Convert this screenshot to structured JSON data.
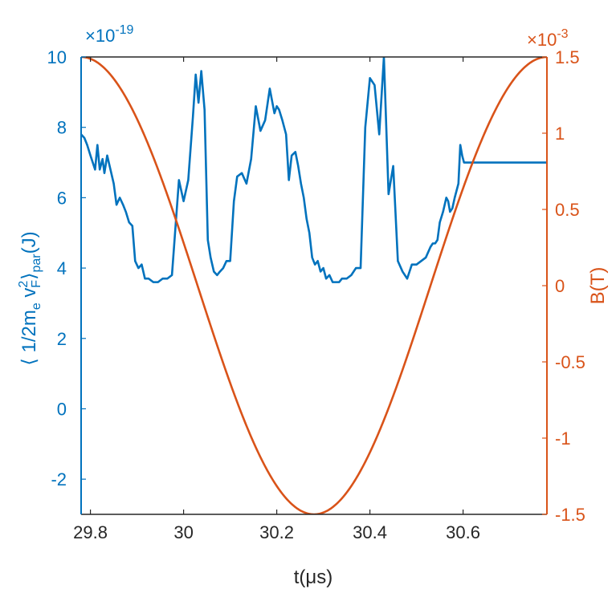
{
  "chart_data": {
    "type": "line",
    "xlabel": "t(μs)",
    "x_ticks": [
      "29.8",
      "30",
      "30.2",
      "30.4",
      "30.6"
    ],
    "xlim": [
      29.78,
      30.78
    ],
    "left_axis": {
      "label": "⟨ 1/2m_e v_F^2 ⟩_par (J)",
      "label_parts": {
        "open": "⟨ 1/2m",
        "e": "e",
        "mid": "v",
        "sup": "2",
        "sub_f": "F",
        "close": "⟩",
        "sub_par": "par",
        "unit": "(J)"
      },
      "multiplier": "×10",
      "multiplier_exp": "-19",
      "ylim": [
        -3,
        10
      ],
      "ticks": [
        "10",
        "8",
        "6",
        "4",
        "2",
        "0",
        "-2"
      ],
      "tick_values": [
        10,
        8,
        6,
        4,
        2,
        0,
        -2
      ],
      "color": "#0072BD"
    },
    "right_axis": {
      "label": "B(T)",
      "multiplier": "×10",
      "multiplier_exp": "-3",
      "ylim": [
        -1.5,
        1.5
      ],
      "ticks": [
        "1.5",
        "1",
        "0.5",
        "0",
        "-0.5",
        "-1",
        "-1.5"
      ],
      "tick_values": [
        1.5,
        1,
        0.5,
        0,
        -0.5,
        -1,
        -1.5
      ],
      "color": "#D95319"
    },
    "series": [
      {
        "axis": "left",
        "color": "#0072BD",
        "x": [
          29.78,
          29.787,
          29.793,
          29.8,
          29.81,
          29.815,
          29.82,
          29.826,
          29.83,
          29.836,
          29.843,
          29.85,
          29.856,
          29.863,
          29.87,
          29.876,
          29.883,
          29.89,
          29.896,
          29.903,
          29.91,
          29.917,
          29.925,
          29.935,
          29.945,
          29.955,
          29.965,
          29.975,
          29.99,
          30.0,
          30.01,
          30.02,
          30.026,
          30.032,
          30.038,
          30.045,
          30.052,
          30.058,
          30.065,
          30.072,
          30.078,
          30.085,
          30.092,
          30.1,
          30.108,
          30.115,
          30.125,
          30.135,
          30.145,
          30.155,
          30.165,
          30.175,
          30.185,
          30.195,
          30.2,
          30.205,
          30.212,
          30.22,
          30.226,
          30.232,
          30.24,
          30.246,
          30.252,
          30.258,
          30.264,
          30.27,
          30.276,
          30.282,
          30.288,
          30.294,
          30.3,
          30.306,
          30.313,
          30.32,
          30.327,
          30.334,
          30.34,
          30.35,
          30.36,
          30.37,
          30.38,
          30.39,
          30.4,
          30.41,
          30.42,
          30.43,
          30.44,
          30.45,
          30.46,
          30.47,
          30.48,
          30.49,
          30.5,
          30.51,
          30.52,
          30.53,
          30.535,
          30.54,
          30.545,
          30.55,
          30.557,
          30.564,
          30.568,
          30.572,
          30.577,
          30.582,
          30.586,
          30.59,
          30.594,
          30.598,
          30.602,
          30.61,
          30.62,
          30.63,
          30.64,
          30.65,
          30.66,
          30.67,
          30.68,
          30.69,
          30.7,
          30.71,
          30.72,
          30.73,
          30.74,
          30.75,
          30.76,
          30.768,
          30.775,
          30.78
        ],
        "y": [
          7.8,
          7.7,
          7.5,
          7.2,
          6.8,
          7.5,
          6.8,
          7.1,
          6.7,
          7.2,
          6.8,
          6.4,
          5.8,
          6.0,
          5.8,
          5.6,
          5.3,
          5.2,
          4.2,
          4.0,
          4.1,
          3.7,
          3.7,
          3.6,
          3.6,
          3.7,
          3.7,
          3.8,
          6.5,
          5.9,
          6.5,
          8.3,
          9.5,
          8.7,
          9.6,
          8.5,
          4.8,
          4.3,
          3.9,
          3.8,
          3.9,
          4.0,
          4.2,
          4.2,
          5.9,
          6.6,
          6.7,
          6.4,
          7.1,
          8.6,
          7.9,
          8.2,
          9.1,
          8.4,
          8.6,
          8.5,
          8.2,
          7.8,
          6.5,
          7.2,
          7.3,
          6.9,
          6.4,
          6.0,
          5.4,
          5.0,
          4.3,
          4.1,
          4.2,
          3.9,
          4.0,
          3.7,
          3.8,
          3.6,
          3.6,
          3.6,
          3.7,
          3.7,
          3.8,
          4.0,
          4.0,
          8.0,
          9.4,
          9.2,
          7.8,
          10.0,
          6.1,
          6.9,
          4.2,
          3.9,
          3.7,
          4.1,
          4.1,
          4.2,
          4.3,
          4.6,
          4.7,
          4.7,
          4.8,
          5.3,
          5.6,
          6.0,
          5.9,
          5.6,
          5.7,
          6.0,
          6.2,
          6.4,
          7.5,
          7.2,
          7.0,
          7.0,
          7.0,
          7.0,
          7.0,
          7.0,
          7.0,
          7.0,
          7.0,
          7.0,
          7.0,
          7.0,
          7.0,
          7.0,
          7.0,
          7.0,
          7.0,
          7.0,
          7.0,
          7.0
        ]
      },
      {
        "axis": "right",
        "color": "#D95319",
        "formula": "B = 1.5 cos(2π (t - 29.78) / 1.0)"
      }
    ],
    "grid": false,
    "legend": "none"
  }
}
